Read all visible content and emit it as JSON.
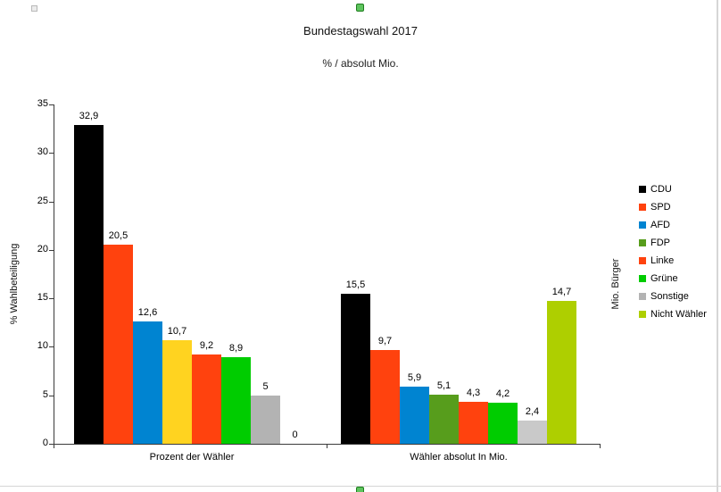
{
  "ui": {
    "selection_handle_fill": "#5EC45E",
    "selection_handle_border": "#1E7D1E",
    "frame_border_color": "#D6D6D6"
  },
  "chart_data": {
    "type": "bar",
    "title": "Bundestagswahl 2017",
    "subtitle": "% / absolut Mio.",
    "ylabel": "% Wahlbeteiligung",
    "ylabel_secondary": "Mio. Bürger",
    "ylim": [
      0,
      35
    ],
    "yticks": [
      0,
      5,
      10,
      15,
      20,
      25,
      30,
      35
    ],
    "grid": false,
    "legend_position": "right",
    "categories": [
      "Prozent der Wähler",
      "Wähler absolut In Mio."
    ],
    "series": [
      {
        "name": "CDU",
        "color": "#000000",
        "values": [
          32.9,
          15.5
        ],
        "labels": [
          "32,9",
          "15,5"
        ]
      },
      {
        "name": "SPD",
        "color": "#FF420E",
        "values": [
          20.5,
          9.7
        ],
        "labels": [
          "20,5",
          "9,7"
        ]
      },
      {
        "name": "AFD",
        "color": "#0084D1",
        "values": [
          12.6,
          5.9
        ],
        "labels": [
          "12,6",
          "5,9"
        ]
      },
      {
        "name": "FDP",
        "color": "#579D1C",
        "bar_colors": [
          "#FFD320",
          "#579D1C"
        ],
        "values": [
          10.7,
          5.1
        ],
        "labels": [
          "10,7",
          "5,1"
        ]
      },
      {
        "name": "Linke",
        "color": "#FF420E",
        "values": [
          9.2,
          4.3
        ],
        "labels": [
          "9,2",
          "4,3"
        ]
      },
      {
        "name": "Grüne",
        "color": "#00CC00",
        "values": [
          8.9,
          4.2
        ],
        "labels": [
          "8,9",
          "4,2"
        ]
      },
      {
        "name": "Sonstige",
        "color": "#B3B3B3",
        "bar_colors": [
          "#B3B3B3",
          "#C9C9C9"
        ],
        "values": [
          5,
          2.4
        ],
        "labels": [
          "5",
          "2,4"
        ]
      },
      {
        "name": "Nicht Wähler",
        "color": "#AECF00",
        "values": [
          0,
          14.7
        ],
        "labels": [
          "0",
          "14,7"
        ]
      }
    ]
  }
}
